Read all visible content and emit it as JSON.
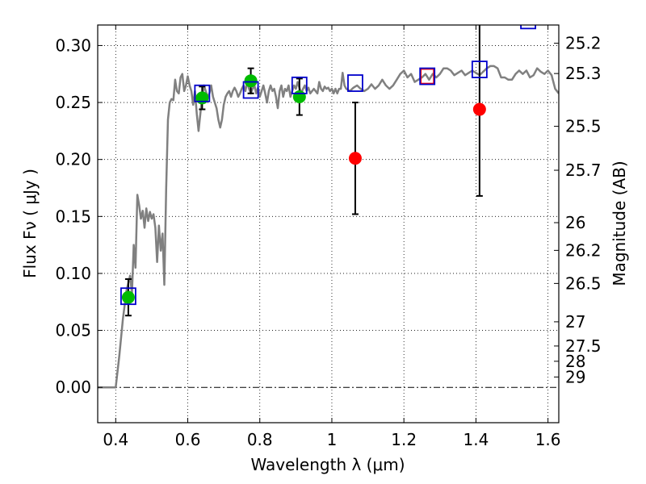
{
  "chart_data": {
    "type": "scatter",
    "xlabel": "Wavelength  λ (μm)",
    "ylabel": "Flux  Fν  ( μJy )",
    "ylabel_right": "Magnitude (AB)",
    "xlim": [
      0.35,
      1.63
    ],
    "ylim": [
      -0.031,
      0.318
    ],
    "grid": true,
    "x_ticks": [
      {
        "v": 0.4,
        "label": "0.4"
      },
      {
        "v": 0.6,
        "label": "0.6"
      },
      {
        "v": 0.8,
        "label": "0.8"
      },
      {
        "v": 1.0,
        "label": "1"
      },
      {
        "v": 1.2,
        "label": "1.2"
      },
      {
        "v": 1.4,
        "label": "1.4"
      },
      {
        "v": 1.6,
        "label": "1.6"
      }
    ],
    "y_ticks": [
      {
        "v": 0.0,
        "label": "0.00"
      },
      {
        "v": 0.05,
        "label": "0.05"
      },
      {
        "v": 0.1,
        "label": "0.10"
      },
      {
        "v": 0.15,
        "label": "0.15"
      },
      {
        "v": 0.2,
        "label": "0.20"
      },
      {
        "v": 0.25,
        "label": "0.25"
      },
      {
        "v": 0.3,
        "label": "0.30"
      }
    ],
    "right_ticks": [
      {
        "mag": 25.2,
        "label": "25.2"
      },
      {
        "mag": 25.3,
        "label": "25.3"
      },
      {
        "mag": 25.5,
        "label": "25.5"
      },
      {
        "mag": 25.7,
        "label": "25.7"
      },
      {
        "mag": 26,
        "label": "26"
      },
      {
        "mag": 26.2,
        "label": "26.2"
      },
      {
        "mag": 26.5,
        "label": "26.5"
      },
      {
        "mag": 27,
        "label": "27"
      },
      {
        "mag": 27.5,
        "label": "27.5"
      },
      {
        "mag": 28,
        "label": "28"
      },
      {
        "mag": 29,
        "label": "29"
      }
    ],
    "zero_line": 0.0,
    "colors": {
      "spectrum": "#808080",
      "green": "#00bb00",
      "red": "#ff0000",
      "model_box": "#0000cc",
      "model_box_highlight": "#ff0000",
      "grid": "#000000"
    },
    "spectrum": [
      [
        0.35,
        0.0
      ],
      [
        0.4,
        0.0
      ],
      [
        0.41,
        0.028
      ],
      [
        0.42,
        0.06
      ],
      [
        0.43,
        0.085
      ],
      [
        0.44,
        0.098
      ],
      [
        0.445,
        0.082
      ],
      [
        0.45,
        0.125
      ],
      [
        0.455,
        0.105
      ],
      [
        0.46,
        0.169
      ],
      [
        0.465,
        0.16
      ],
      [
        0.47,
        0.148
      ],
      [
        0.475,
        0.155
      ],
      [
        0.48,
        0.14
      ],
      [
        0.485,
        0.157
      ],
      [
        0.49,
        0.146
      ],
      [
        0.495,
        0.154
      ],
      [
        0.5,
        0.148
      ],
      [
        0.505,
        0.152
      ],
      [
        0.51,
        0.14
      ],
      [
        0.515,
        0.11
      ],
      [
        0.52,
        0.142
      ],
      [
        0.525,
        0.12
      ],
      [
        0.53,
        0.135
      ],
      [
        0.535,
        0.09
      ],
      [
        0.54,
        0.175
      ],
      [
        0.545,
        0.235
      ],
      [
        0.55,
        0.25
      ],
      [
        0.555,
        0.253
      ],
      [
        0.56,
        0.252
      ],
      [
        0.565,
        0.27
      ],
      [
        0.57,
        0.26
      ],
      [
        0.575,
        0.258
      ],
      [
        0.58,
        0.272
      ],
      [
        0.585,
        0.275
      ],
      [
        0.59,
        0.26
      ],
      [
        0.595,
        0.265
      ],
      [
        0.6,
        0.273
      ],
      [
        0.605,
        0.265
      ],
      [
        0.61,
        0.26
      ],
      [
        0.615,
        0.248
      ],
      [
        0.62,
        0.26
      ],
      [
        0.625,
        0.24
      ],
      [
        0.63,
        0.225
      ],
      [
        0.635,
        0.24
      ],
      [
        0.64,
        0.255
      ],
      [
        0.645,
        0.265
      ],
      [
        0.65,
        0.26
      ],
      [
        0.655,
        0.255
      ],
      [
        0.66,
        0.258
      ],
      [
        0.665,
        0.265
      ],
      [
        0.67,
        0.255
      ],
      [
        0.675,
        0.25
      ],
      [
        0.68,
        0.245
      ],
      [
        0.685,
        0.235
      ],
      [
        0.69,
        0.228
      ],
      [
        0.695,
        0.235
      ],
      [
        0.7,
        0.248
      ],
      [
        0.705,
        0.255
      ],
      [
        0.71,
        0.258
      ],
      [
        0.715,
        0.26
      ],
      [
        0.72,
        0.255
      ],
      [
        0.725,
        0.26
      ],
      [
        0.73,
        0.263
      ],
      [
        0.735,
        0.26
      ],
      [
        0.74,
        0.255
      ],
      [
        0.745,
        0.258
      ],
      [
        0.75,
        0.262
      ],
      [
        0.755,
        0.265
      ],
      [
        0.76,
        0.26
      ],
      [
        0.765,
        0.268
      ],
      [
        0.77,
        0.262
      ],
      [
        0.775,
        0.258
      ],
      [
        0.78,
        0.262
      ],
      [
        0.785,
        0.265
      ],
      [
        0.79,
        0.258
      ],
      [
        0.795,
        0.263
      ],
      [
        0.8,
        0.255
      ],
      [
        0.805,
        0.26
      ],
      [
        0.81,
        0.265
      ],
      [
        0.815,
        0.258
      ],
      [
        0.82,
        0.25
      ],
      [
        0.825,
        0.26
      ],
      [
        0.83,
        0.265
      ],
      [
        0.835,
        0.26
      ],
      [
        0.84,
        0.262
      ],
      [
        0.845,
        0.255
      ],
      [
        0.85,
        0.245
      ],
      [
        0.855,
        0.26
      ],
      [
        0.86,
        0.265
      ],
      [
        0.865,
        0.255
      ],
      [
        0.87,
        0.262
      ],
      [
        0.875,
        0.26
      ],
      [
        0.88,
        0.265
      ],
      [
        0.885,
        0.255
      ],
      [
        0.89,
        0.26
      ],
      [
        0.895,
        0.265
      ],
      [
        0.9,
        0.262
      ],
      [
        0.905,
        0.268
      ],
      [
        0.91,
        0.263
      ],
      [
        0.915,
        0.258
      ],
      [
        0.92,
        0.262
      ],
      [
        0.925,
        0.265
      ],
      [
        0.93,
        0.26
      ],
      [
        0.935,
        0.263
      ],
      [
        0.94,
        0.258
      ],
      [
        0.95,
        0.262
      ],
      [
        0.96,
        0.258
      ],
      [
        0.965,
        0.268
      ],
      [
        0.97,
        0.262
      ],
      [
        0.975,
        0.26
      ],
      [
        0.98,
        0.264
      ],
      [
        0.985,
        0.262
      ],
      [
        0.99,
        0.263
      ],
      [
        0.995,
        0.26
      ],
      [
        1.0,
        0.262
      ],
      [
        1.005,
        0.258
      ],
      [
        1.01,
        0.262
      ],
      [
        1.015,
        0.258
      ],
      [
        1.02,
        0.262
      ],
      [
        1.025,
        0.262
      ],
      [
        1.03,
        0.276
      ],
      [
        1.035,
        0.265
      ],
      [
        1.04,
        0.262
      ],
      [
        1.05,
        0.26
      ],
      [
        1.06,
        0.263
      ],
      [
        1.07,
        0.265
      ],
      [
        1.08,
        0.262
      ],
      [
        1.09,
        0.26
      ],
      [
        1.1,
        0.262
      ],
      [
        1.11,
        0.266
      ],
      [
        1.12,
        0.262
      ],
      [
        1.13,
        0.265
      ],
      [
        1.14,
        0.27
      ],
      [
        1.15,
        0.265
      ],
      [
        1.16,
        0.262
      ],
      [
        1.17,
        0.265
      ],
      [
        1.18,
        0.27
      ],
      [
        1.19,
        0.275
      ],
      [
        1.2,
        0.278
      ],
      [
        1.21,
        0.272
      ],
      [
        1.22,
        0.275
      ],
      [
        1.23,
        0.268
      ],
      [
        1.24,
        0.27
      ],
      [
        1.25,
        0.272
      ],
      [
        1.26,
        0.275
      ],
      [
        1.27,
        0.27
      ],
      [
        1.28,
        0.275
      ],
      [
        1.29,
        0.272
      ],
      [
        1.3,
        0.275
      ],
      [
        1.31,
        0.28
      ],
      [
        1.32,
        0.28
      ],
      [
        1.33,
        0.278
      ],
      [
        1.34,
        0.274
      ],
      [
        1.35,
        0.276
      ],
      [
        1.36,
        0.278
      ],
      [
        1.37,
        0.274
      ],
      [
        1.38,
        0.276
      ],
      [
        1.39,
        0.278
      ],
      [
        1.4,
        0.276
      ],
      [
        1.41,
        0.274
      ],
      [
        1.42,
        0.277
      ],
      [
        1.43,
        0.28
      ],
      [
        1.44,
        0.282
      ],
      [
        1.45,
        0.282
      ],
      [
        1.46,
        0.28
      ],
      [
        1.47,
        0.272
      ],
      [
        1.48,
        0.272
      ],
      [
        1.49,
        0.27
      ],
      [
        1.5,
        0.27
      ],
      [
        1.51,
        0.275
      ],
      [
        1.52,
        0.278
      ],
      [
        1.53,
        0.275
      ],
      [
        1.54,
        0.278
      ],
      [
        1.55,
        0.272
      ],
      [
        1.56,
        0.274
      ],
      [
        1.57,
        0.28
      ],
      [
        1.58,
        0.277
      ],
      [
        1.59,
        0.275
      ],
      [
        1.6,
        0.278
      ],
      [
        1.61,
        0.274
      ],
      [
        1.62,
        0.262
      ],
      [
        1.63,
        0.258
      ]
    ],
    "observations_green": [
      {
        "x": 0.435,
        "y": 0.079,
        "err": 0.016
      },
      {
        "x": 0.64,
        "y": 0.254,
        "err": 0.01
      },
      {
        "x": 0.775,
        "y": 0.269,
        "err": 0.011
      },
      {
        "x": 0.91,
        "y": 0.255,
        "err": 0.016
      }
    ],
    "observations_red": [
      {
        "x": 1.065,
        "y": 0.201,
        "err": 0.049
      },
      {
        "x": 1.41,
        "y": 0.244,
        "err": 0.076
      }
    ],
    "model_points": [
      {
        "x": 0.435,
        "y": 0.08,
        "highlight": false
      },
      {
        "x": 0.64,
        "y": 0.258,
        "highlight": false
      },
      {
        "x": 0.775,
        "y": 0.261,
        "highlight": false
      },
      {
        "x": 0.91,
        "y": 0.265,
        "highlight": false
      },
      {
        "x": 1.065,
        "y": 0.267,
        "highlight": false
      },
      {
        "x": 1.265,
        "y": 0.273,
        "highlight": true
      },
      {
        "x": 1.41,
        "y": 0.279,
        "highlight": false
      },
      {
        "x": 1.545,
        "y": 0.322,
        "highlight": false
      }
    ]
  }
}
